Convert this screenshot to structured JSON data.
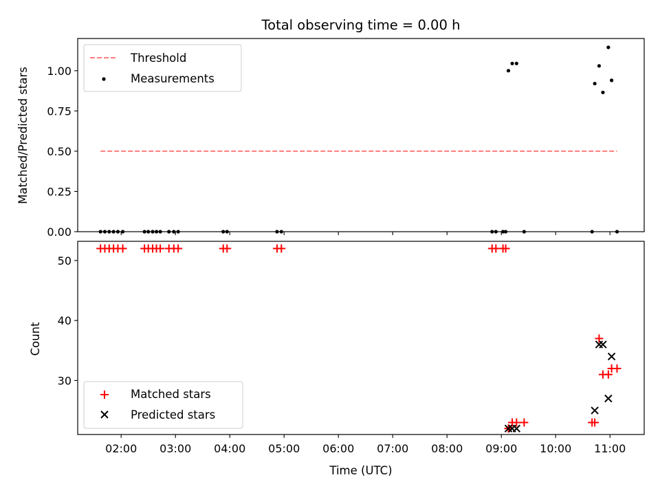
{
  "chart_data": [
    {
      "type": "scatter",
      "panel": "top",
      "title": "Total observing time = 0.00 h",
      "xlabel": "",
      "ylabel": "Matched/Predicted stars",
      "xlim": [
        1.2,
        11.63
      ],
      "ylim": [
        0.0,
        1.2
      ],
      "x_ticks": [
        2,
        3,
        4,
        5,
        6,
        7,
        8,
        9,
        10,
        11
      ],
      "y_ticks": [
        0.0,
        0.25,
        0.5,
        0.75,
        1.0
      ],
      "y_tick_labels": [
        "0.00",
        "0.25",
        "0.50",
        "0.75",
        "1.00"
      ],
      "grid": false,
      "legend": "top-left",
      "threshold": {
        "name": "Threshold",
        "value": 0.5,
        "x_range": [
          1.62,
          11.13
        ],
        "color": "#ff7b7b"
      },
      "series": [
        {
          "name": "Measurements",
          "color": "#000000",
          "marker": "dot",
          "x": [
            1.62,
            1.7,
            1.78,
            1.86,
            1.94,
            2.03,
            2.43,
            2.5,
            2.58,
            2.65,
            2.72,
            2.88,
            2.97,
            3.05,
            3.88,
            3.95,
            4.87,
            4.95,
            8.83,
            8.9,
            9.03,
            9.08,
            9.13,
            9.2,
            9.28,
            9.42,
            10.67,
            10.72,
            10.8,
            10.87,
            10.97,
            11.03,
            11.13
          ],
          "y": [
            0,
            0,
            0,
            0,
            0,
            0,
            0,
            0,
            0,
            0,
            0,
            0,
            0,
            0,
            0,
            0,
            0,
            0,
            0,
            0,
            0,
            0,
            1.0,
            1.045,
            1.045,
            0,
            0,
            0.92,
            1.03,
            0.865,
            1.145,
            0.94,
            0
          ]
        }
      ]
    },
    {
      "type": "scatter",
      "panel": "bottom",
      "title": "",
      "xlabel": "Time (UTC)",
      "ylabel": "Count",
      "xlim": [
        1.2,
        11.63
      ],
      "ylim": [
        21,
        53.2
      ],
      "x_ticks": [
        2,
        3,
        4,
        5,
        6,
        7,
        8,
        9,
        10,
        11
      ],
      "x_tick_labels": [
        "02:00",
        "03:00",
        "04:00",
        "05:00",
        "06:00",
        "07:00",
        "08:00",
        "09:00",
        "10:00",
        "11:00"
      ],
      "y_ticks": [
        30,
        40,
        50
      ],
      "y_tick_labels": [
        "30",
        "40",
        "50"
      ],
      "grid": false,
      "legend": "bottom-left",
      "series": [
        {
          "name": "Matched stars",
          "color": "#ff0000",
          "marker": "plus",
          "x": [
            1.62,
            1.7,
            1.78,
            1.86,
            1.94,
            2.03,
            2.43,
            2.5,
            2.58,
            2.65,
            2.72,
            2.88,
            2.97,
            3.05,
            3.88,
            3.95,
            4.87,
            4.95,
            8.83,
            8.9,
            9.03,
            9.08,
            9.13,
            9.2,
            9.28,
            9.42,
            10.67,
            10.72,
            10.8,
            10.87,
            10.97,
            11.03,
            11.13
          ],
          "y": [
            52,
            52,
            52,
            52,
            52,
            52,
            52,
            52,
            52,
            52,
            52,
            52,
            52,
            52,
            52,
            52,
            52,
            52,
            52,
            52,
            52,
            52,
            22,
            23,
            23,
            23,
            23,
            23,
            37,
            31,
            31,
            32,
            32
          ]
        },
        {
          "name": "Predicted stars",
          "color": "#000000",
          "marker": "x",
          "x": [
            9.13,
            9.2,
            9.28,
            10.72,
            10.8,
            10.87,
            10.97,
            11.03
          ],
          "y": [
            22,
            22,
            22,
            25,
            36,
            36,
            27,
            34
          ]
        }
      ]
    }
  ]
}
